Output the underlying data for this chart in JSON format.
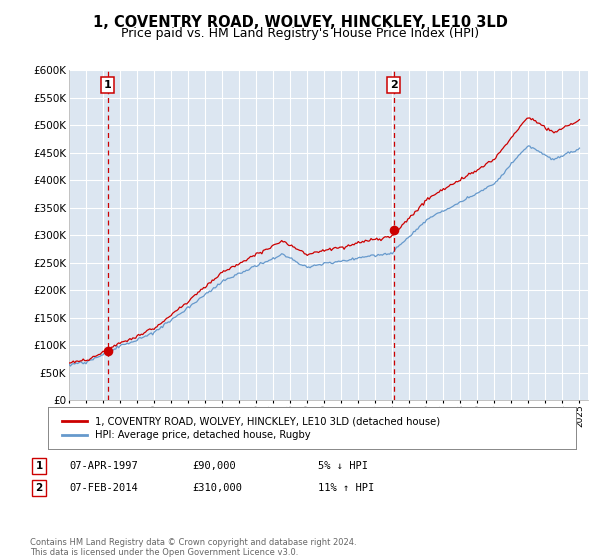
{
  "title": "1, COVENTRY ROAD, WOLVEY, HINCKLEY, LE10 3LD",
  "subtitle": "Price paid vs. HM Land Registry's House Price Index (HPI)",
  "legend_line1": "1, COVENTRY ROAD, WOLVEY, HINCKLEY, LE10 3LD (detached house)",
  "legend_line2": "HPI: Average price, detached house, Rugby",
  "annotation1_date": "07-APR-1997",
  "annotation1_price": "£90,000",
  "annotation1_hpi": "5% ↓ HPI",
  "annotation2_date": "07-FEB-2014",
  "annotation2_price": "£310,000",
  "annotation2_hpi": "11% ↑ HPI",
  "footer": "Contains HM Land Registry data © Crown copyright and database right 2024.\nThis data is licensed under the Open Government Licence v3.0.",
  "sale1_year": 1997.27,
  "sale1_price": 90000,
  "sale2_year": 2014.09,
  "sale2_price": 310000,
  "hpi_color": "#6699cc",
  "price_color": "#cc0000",
  "vline_color": "#cc0000",
  "plot_bg_color": "#dce6f1",
  "ylim": [
    0,
    600000
  ],
  "ytick_step": 50000,
  "grid_color": "#ffffff",
  "title_fontsize": 10.5,
  "subtitle_fontsize": 9
}
